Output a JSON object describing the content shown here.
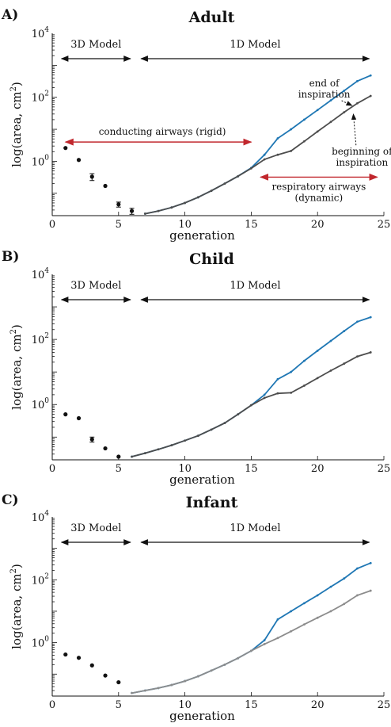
{
  "chart_data": [
    {
      "type": "line",
      "panel_letter": "A)",
      "title": "Adult",
      "xlabel": "generation",
      "ylabel_main": "log(area, cm",
      "ylabel_sup": "2",
      "ylabel_end": ")",
      "xlim": [
        0,
        25
      ],
      "ylim": [
        0.02,
        10000
      ],
      "y_scale": "log",
      "x_ticks": [
        "0",
        "5",
        "10",
        "15",
        "20",
        "25"
      ],
      "y_ticks": [
        {
          "base": "10",
          "exp": "4",
          "value": 10000
        },
        {
          "base": "10",
          "exp": "2",
          "value": 100
        },
        {
          "base": "10",
          "exp": "0",
          "value": 1
        }
      ],
      "model_ranges": [
        {
          "label": "3D Model",
          "from": 0.7,
          "to": 5.9
        },
        {
          "label": "1D Model",
          "from": 6.7,
          "to": 23.9
        }
      ],
      "points_3d": [
        {
          "x": 1,
          "y": 2.6,
          "err": 0
        },
        {
          "x": 2,
          "y": 1.1,
          "err": 0
        },
        {
          "x": 3,
          "y": 0.33,
          "err": 0.08
        },
        {
          "x": 4,
          "y": 0.17,
          "err": 0
        },
        {
          "x": 5,
          "y": 0.045,
          "err": 0.008
        },
        {
          "x": 6,
          "y": 0.028,
          "err": 0.006
        }
      ],
      "series": [
        {
          "name": "end of inspiration",
          "color": "#1f77b4",
          "x": [
            7,
            8,
            9,
            10,
            11,
            12,
            13,
            14,
            15,
            16,
            17,
            18,
            19,
            20,
            21,
            22,
            23,
            24
          ],
          "y": [
            0.023,
            0.028,
            0.036,
            0.05,
            0.075,
            0.12,
            0.2,
            0.34,
            0.62,
            1.6,
            5.2,
            10,
            20,
            40,
            80,
            160,
            320,
            480
          ]
        },
        {
          "name": "beginning of inspiration",
          "color": "#4d4d4d",
          "x": [
            7,
            8,
            9,
            10,
            11,
            12,
            13,
            14,
            15,
            16,
            17,
            18,
            19,
            20,
            21,
            22,
            23,
            24
          ],
          "y": [
            0.023,
            0.028,
            0.036,
            0.05,
            0.075,
            0.12,
            0.2,
            0.34,
            0.6,
            1.15,
            1.6,
            2.1,
            4.2,
            8.5,
            17,
            34,
            65,
            110
          ]
        }
      ],
      "annotations": [
        {
          "text": "conducting airways (rigid)",
          "arrow_from": 1,
          "arrow_to": 15,
          "color": "#c1272d"
        },
        {
          "text_lines": [
            "respiratory airways",
            "(dynamic)"
          ],
          "arrow_from": 15.7,
          "arrow_to": 24.5,
          "color": "#c1272d"
        },
        {
          "text_lines": [
            "end of",
            "inspiration"
          ],
          "target": "end of inspiration"
        },
        {
          "text_lines": [
            "beginning of",
            "inspiration"
          ],
          "target": "beginning of inspiration"
        }
      ]
    },
    {
      "type": "line",
      "panel_letter": "B)",
      "title": "Child",
      "xlabel": "generation",
      "ylabel_main": "log(area, cm",
      "ylabel_sup": "2",
      "ylabel_end": ")",
      "xlim": [
        0,
        25
      ],
      "ylim": [
        0.02,
        10000
      ],
      "y_scale": "log",
      "x_ticks": [
        "0",
        "5",
        "10",
        "15",
        "20",
        "25"
      ],
      "y_ticks": [
        {
          "base": "10",
          "exp": "4",
          "value": 10000
        },
        {
          "base": "10",
          "exp": "2",
          "value": 100
        },
        {
          "base": "10",
          "exp": "0",
          "value": 1
        }
      ],
      "model_ranges": [
        {
          "label": "3D Model",
          "from": 0.7,
          "to": 5.9
        },
        {
          "label": "1D Model",
          "from": 6.7,
          "to": 23.9
        }
      ],
      "points_3d": [
        {
          "x": 1,
          "y": 0.5,
          "err": 0
        },
        {
          "x": 2,
          "y": 0.38,
          "err": 0
        },
        {
          "x": 3,
          "y": 0.085,
          "err": 0.015
        },
        {
          "x": 4,
          "y": 0.045,
          "err": 0
        },
        {
          "x": 5,
          "y": 0.025,
          "err": 0
        }
      ],
      "series": [
        {
          "name": "end of inspiration",
          "color": "#1f77b4",
          "x": [
            6,
            7,
            8,
            9,
            10,
            11,
            12,
            13,
            14,
            15,
            16,
            17,
            18,
            19,
            20,
            21,
            22,
            23,
            24
          ],
          "y": [
            0.025,
            0.032,
            0.042,
            0.056,
            0.078,
            0.11,
            0.17,
            0.27,
            0.5,
            0.95,
            2.0,
            6.0,
            10,
            22,
            45,
            90,
            180,
            350,
            480
          ]
        },
        {
          "name": "beginning of inspiration",
          "color": "#4d4d4d",
          "x": [
            6,
            7,
            8,
            9,
            10,
            11,
            12,
            13,
            14,
            15,
            16,
            17,
            18,
            19,
            20,
            21,
            22,
            23,
            24
          ],
          "y": [
            0.025,
            0.032,
            0.042,
            0.056,
            0.078,
            0.11,
            0.17,
            0.27,
            0.5,
            0.95,
            1.6,
            2.2,
            2.3,
            3.8,
            6.5,
            11,
            18,
            30,
            40
          ]
        }
      ],
      "annotations": []
    },
    {
      "type": "line",
      "panel_letter": "C)",
      "title": "Infant",
      "xlabel": "generation",
      "ylabel_main": "log(area, cm",
      "ylabel_sup": "2",
      "ylabel_end": ")",
      "xlim": [
        0,
        25
      ],
      "ylim": [
        0.02,
        10000
      ],
      "y_scale": "log",
      "x_ticks": [
        "0",
        "5",
        "10",
        "15",
        "20",
        "25"
      ],
      "y_ticks": [
        {
          "base": "10",
          "exp": "4",
          "value": 10000
        },
        {
          "base": "10",
          "exp": "2",
          "value": 100
        },
        {
          "base": "10",
          "exp": "0",
          "value": 1
        }
      ],
      "model_ranges": [
        {
          "label": "3D Model",
          "from": 0.7,
          "to": 5.9
        },
        {
          "label": "1D Model",
          "from": 6.7,
          "to": 23.9
        }
      ],
      "points_3d": [
        {
          "x": 1,
          "y": 0.42,
          "err": 0
        },
        {
          "x": 2,
          "y": 0.33,
          "err": 0
        },
        {
          "x": 3,
          "y": 0.19,
          "err": 0
        },
        {
          "x": 4,
          "y": 0.09,
          "err": 0
        },
        {
          "x": 5,
          "y": 0.055,
          "err": 0
        }
      ],
      "series": [
        {
          "name": "end of inspiration",
          "color": "#1f77b4",
          "x": [
            6,
            7,
            8,
            9,
            10,
            11,
            12,
            13,
            14,
            15,
            16,
            17,
            18,
            19,
            20,
            21,
            22,
            23,
            24
          ],
          "y": [
            0.025,
            0.03,
            0.036,
            0.045,
            0.06,
            0.085,
            0.13,
            0.2,
            0.32,
            0.55,
            1.2,
            5.5,
            10,
            18,
            32,
            60,
            110,
            230,
            340
          ]
        },
        {
          "name": "beginning of inspiration",
          "color": "#8c8c8c",
          "x": [
            6,
            7,
            8,
            9,
            10,
            11,
            12,
            13,
            14,
            15,
            16,
            17,
            18,
            19,
            20,
            21,
            22,
            23,
            24
          ],
          "y": [
            0.025,
            0.03,
            0.036,
            0.045,
            0.06,
            0.085,
            0.13,
            0.2,
            0.32,
            0.55,
            0.9,
            1.4,
            2.3,
            3.8,
            6.2,
            10,
            17,
            32,
            45
          ]
        }
      ],
      "annotations": []
    }
  ]
}
